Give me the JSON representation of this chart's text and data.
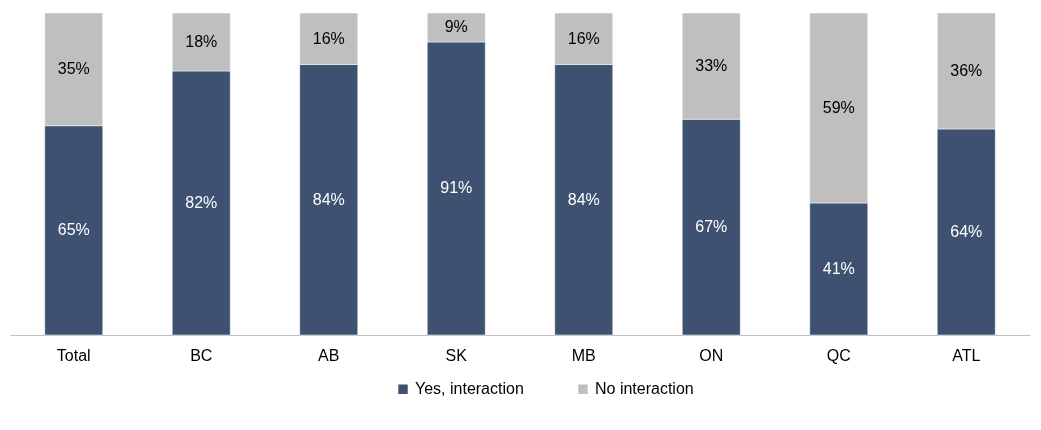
{
  "chart_data": {
    "type": "bar",
    "stacked": true,
    "categories": [
      "Total",
      "BC",
      "AB",
      "SK",
      "MB",
      "ON",
      "QC",
      "ATL"
    ],
    "series": [
      {
        "name": "Yes, interaction",
        "color": "#3f5170",
        "values": [
          65,
          82,
          84,
          91,
          84,
          67,
          41,
          64
        ],
        "value_labels": [
          "65%",
          "82%",
          "84%",
          "91%",
          "84%",
          "67%",
          "41%",
          "64%"
        ]
      },
      {
        "name": "No interaction",
        "color": "#bfbfbf",
        "values": [
          35,
          18,
          16,
          9,
          16,
          33,
          59,
          36
        ],
        "value_labels": [
          "35%",
          "18%",
          "16%",
          "9%",
          "16%",
          "33%",
          "59%",
          "36%"
        ]
      }
    ],
    "legend": "bottom"
  }
}
